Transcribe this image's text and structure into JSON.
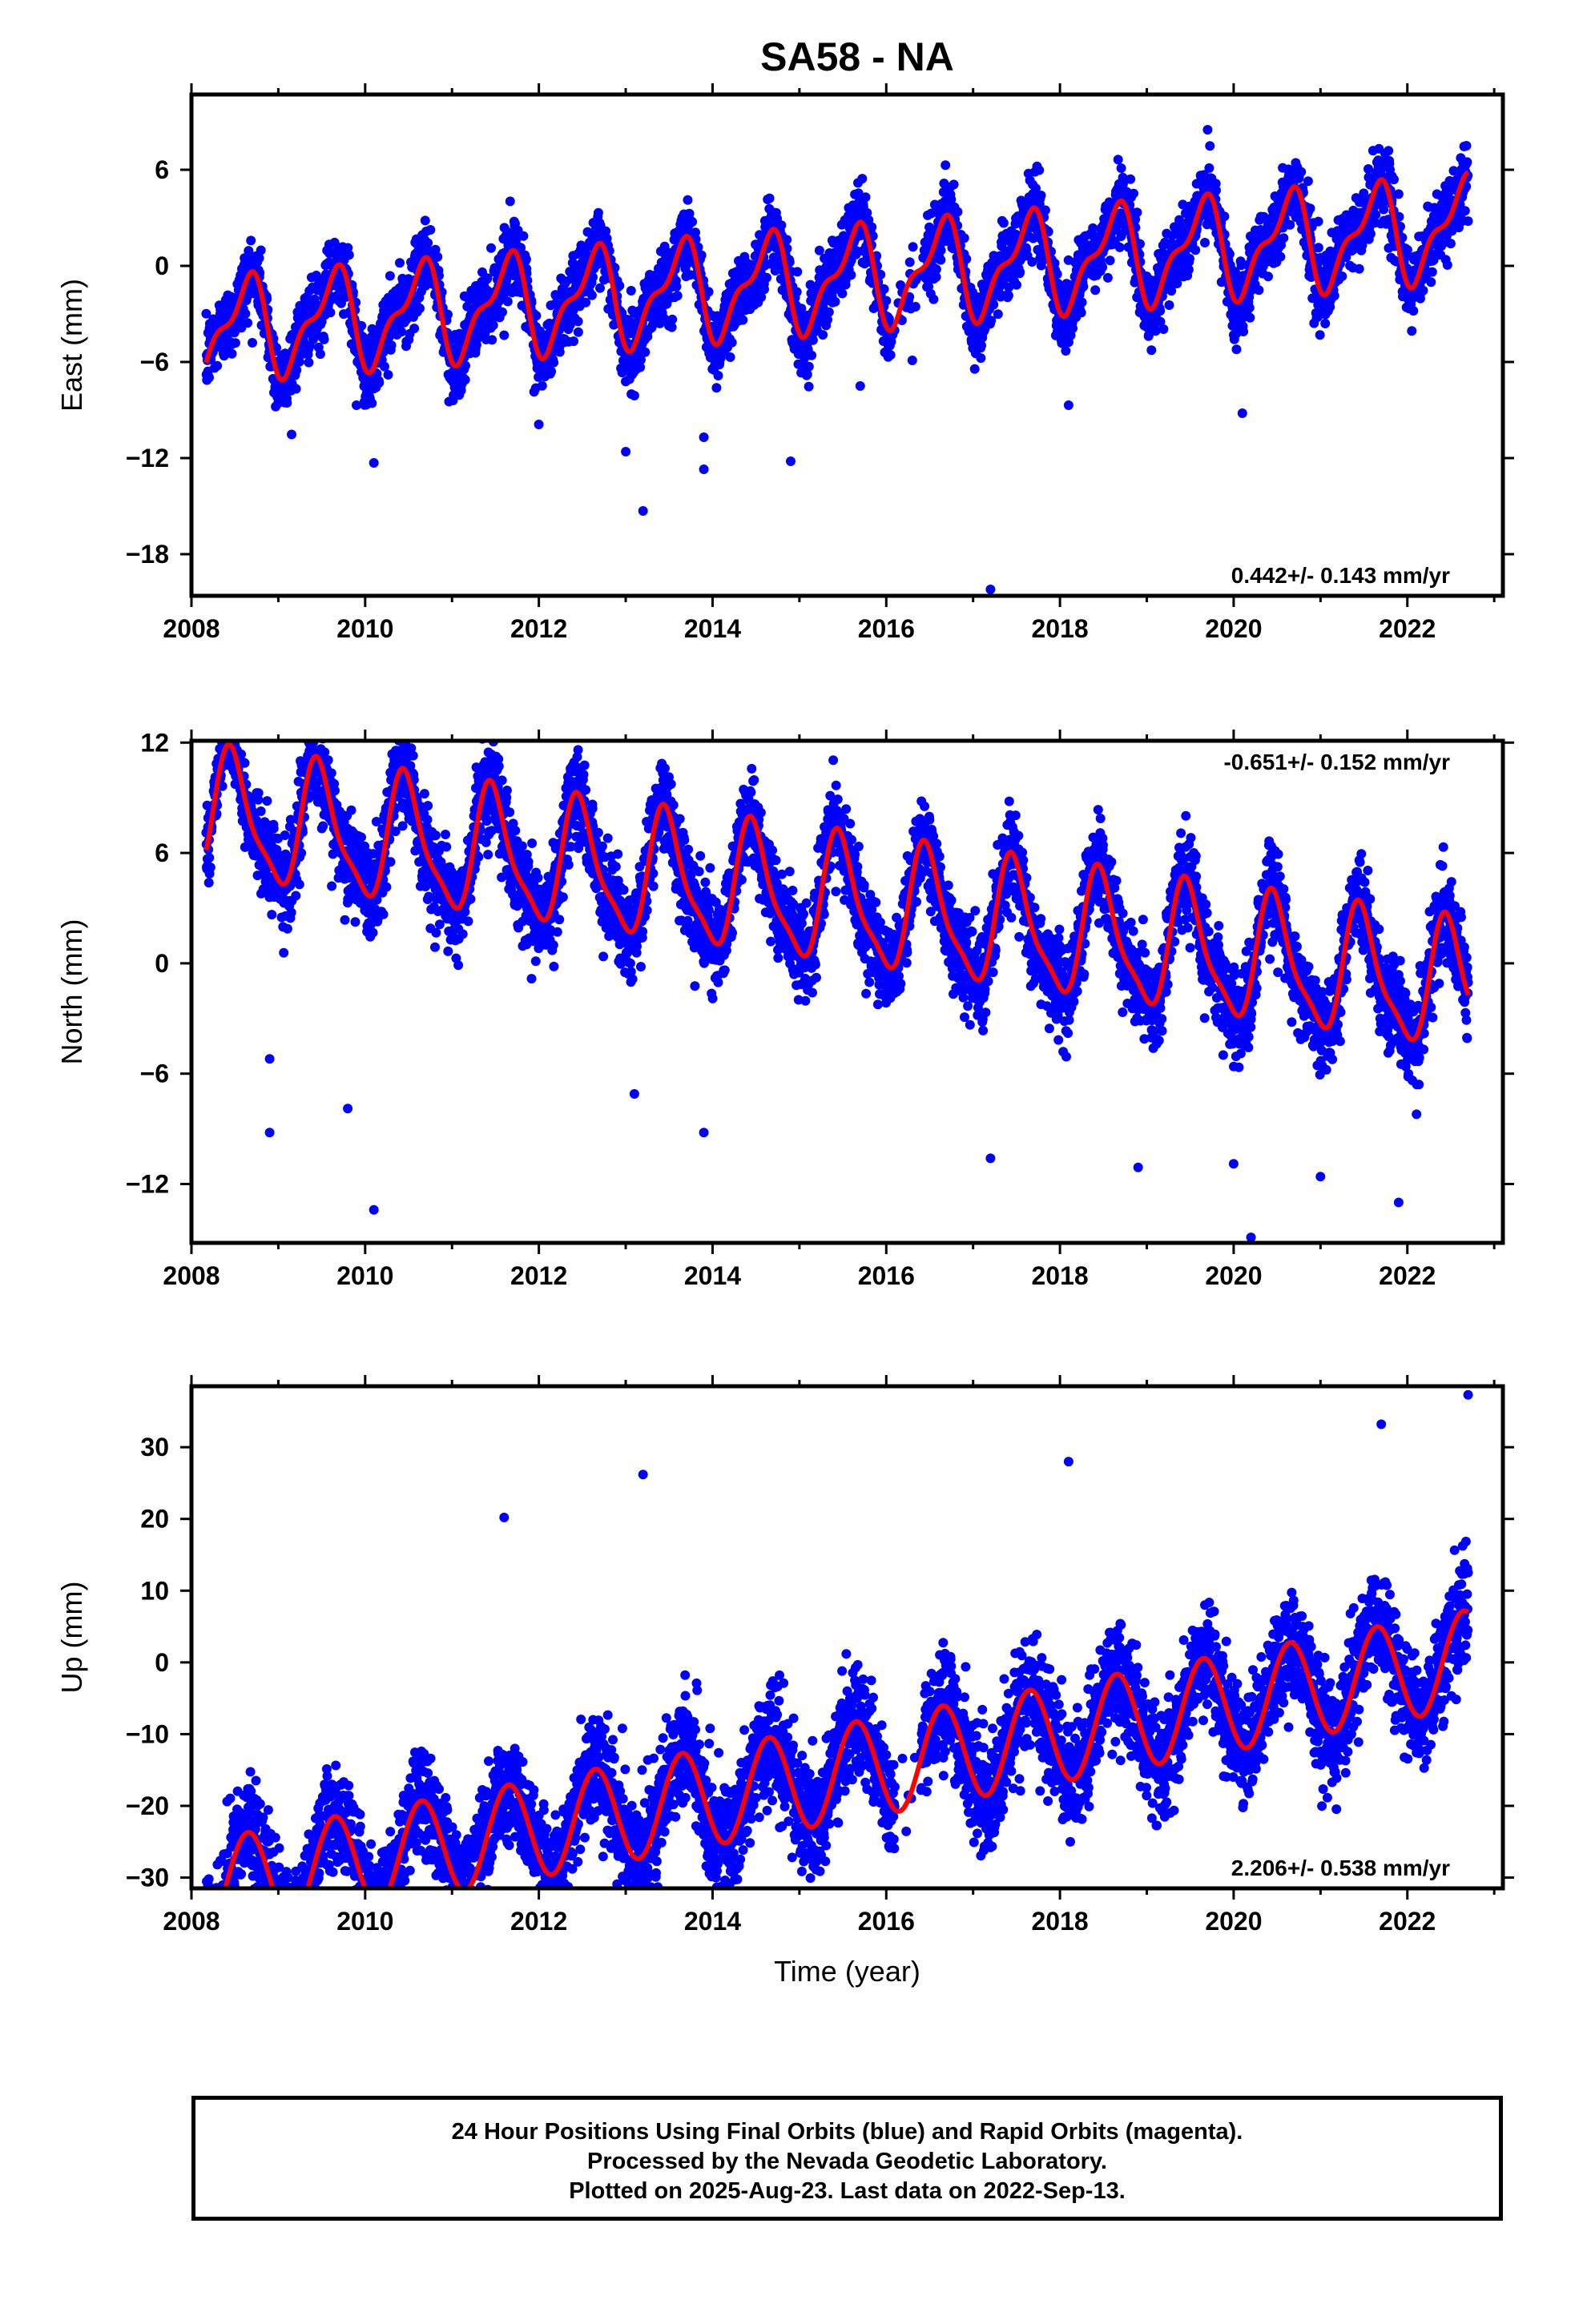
{
  "title": "SA58 - NA",
  "footer": {
    "line1": "24 Hour Positions Using Final Orbits (blue) and Rapid Orbits (magenta).",
    "line2": "Processed by the Nevada Geodetic Laboratory.",
    "line3": "Plotted on 2025-Aug-23. Last data on 2022-Sep-13."
  },
  "colors": {
    "points": "#0000ff",
    "fit": "#ff0000",
    "frame": "#000000"
  },
  "chart_data": [
    {
      "type": "scatter",
      "ylabel": "East (mm)",
      "xlabel": "",
      "xlim": [
        2008.0,
        2023.1
      ],
      "ylim": [
        -20.6,
        10.7
      ],
      "xticks": [
        "2008",
        "2010",
        "2012",
        "2014",
        "2016",
        "2018",
        "2020",
        "2022"
      ],
      "yticks": [
        "6",
        "0",
        "−6",
        "−12",
        "−18"
      ],
      "rate": "0.442+/- 0.143 mm/yr",
      "rate_position": "bottom-right",
      "series": [
        {
          "role": "points",
          "model": {
            "start": 2008.17,
            "end": 2022.7,
            "offset": -1.0,
            "trend": 0.442,
            "amp1": 2.8,
            "phase1": 0.62,
            "amp2": 1.2,
            "phase2": 0.75,
            "noise": 1.1
          }
        },
        {
          "role": "fit",
          "model": {
            "start": 2008.17,
            "end": 2022.7,
            "offset": -1.0,
            "trend": 0.442,
            "amp1": 2.8,
            "phase1": 0.62,
            "amp2": 1.2,
            "phase2": 0.75
          }
        }
      ],
      "outliers": [
        [
          2008.9,
          -4.5
        ],
        [
          2009.9,
          -8.7
        ],
        [
          2010.1,
          -12.3
        ],
        [
          2012.0,
          -9.9
        ],
        [
          2013.0,
          -11.6
        ],
        [
          2013.1,
          -8.1
        ],
        [
          2013.2,
          -15.3
        ],
        [
          2013.9,
          -12.7
        ],
        [
          2013.9,
          -10.7
        ],
        [
          2014.9,
          -12.2
        ],
        [
          2015.7,
          -7.5
        ],
        [
          2017.2,
          -20.2
        ],
        [
          2018.1,
          -8.7
        ],
        [
          2020.1,
          -9.2
        ],
        [
          2019.7,
          8.5
        ],
        [
          2016.3,
          -5.9
        ]
      ]
    },
    {
      "type": "scatter",
      "ylabel": "North (mm)",
      "xlabel": "",
      "xlim": [
        2008.0,
        2023.1
      ],
      "ylim": [
        -15.2,
        12.1
      ],
      "xticks": [
        "2008",
        "2010",
        "2012",
        "2014",
        "2016",
        "2018",
        "2020",
        "2022"
      ],
      "yticks": [
        "12",
        "6",
        "0",
        "−6",
        "−12"
      ],
      "rate": "-0.651+/- 0.152 mm/yr",
      "rate_position": "top-right",
      "series": [
        {
          "role": "points",
          "model": {
            "start": 2008.17,
            "end": 2022.7,
            "offset": 3.6,
            "trend": -0.651,
            "amp1": 3.3,
            "phase1": 0.47,
            "amp2": 0.9,
            "phase2": 0.4,
            "noise": 1.2
          }
        },
        {
          "role": "fit",
          "model": {
            "start": 2008.17,
            "end": 2022.7,
            "offset": 3.6,
            "trend": -0.651,
            "amp1": 3.3,
            "phase1": 0.47,
            "amp2": 0.9,
            "phase2": 0.4
          }
        }
      ],
      "outliers": [
        [
          2008.9,
          -9.2
        ],
        [
          2008.9,
          -5.2
        ],
        [
          2010.1,
          -13.4
        ],
        [
          2009.8,
          -7.9
        ],
        [
          2013.1,
          -7.1
        ],
        [
          2013.9,
          -9.2
        ],
        [
          2017.2,
          -10.6
        ],
        [
          2018.9,
          -11.1
        ],
        [
          2020.0,
          -10.9
        ],
        [
          2020.2,
          -14.9
        ],
        [
          2021.0,
          -11.6
        ],
        [
          2021.9,
          -13.0
        ],
        [
          2008.5,
          11.9
        ]
      ]
    },
    {
      "type": "scatter",
      "ylabel": "Up (mm)",
      "xlabel": "Time (year)",
      "xlim": [
        2008.0,
        2023.1
      ],
      "ylim": [
        -31.5,
        38.5
      ],
      "xticks": [
        "2008",
        "2010",
        "2012",
        "2014",
        "2016",
        "2018",
        "2020",
        "2022"
      ],
      "yticks": [
        "30",
        "20",
        "10",
        "0",
        "−10",
        "−20",
        "−30"
      ],
      "rate": "2.206+/- 0.538 mm/yr",
      "rate_position": "bottom-right",
      "series": [
        {
          "role": "points",
          "model": {
            "start": 2008.17,
            "end": 2022.7,
            "offset": -16.5,
            "trend": 2.206,
            "amp1": 6.8,
            "phase1": 0.65,
            "amp2": 0.0,
            "phase2": 0.0,
            "noise": 3.8
          }
        },
        {
          "role": "fit",
          "model": {
            "start": 2008.17,
            "end": 2022.7,
            "offset": -16.5,
            "trend": 2.206,
            "amp1": 6.8,
            "phase1": 0.65,
            "amp2": 0.0,
            "phase2": 0.0
          }
        }
      ],
      "outliers": [
        [
          2008.2,
          -30.2
        ],
        [
          2009.2,
          -30.4
        ],
        [
          2011.6,
          20.2
        ],
        [
          2013.2,
          26.2
        ],
        [
          2017.2,
          -25.8
        ],
        [
          2018.1,
          28.0
        ],
        [
          2021.7,
          33.2
        ],
        [
          2022.7,
          37.3
        ],
        [
          2010.3,
          -25.8
        ],
        [
          2011.2,
          -26.4
        ]
      ]
    }
  ]
}
